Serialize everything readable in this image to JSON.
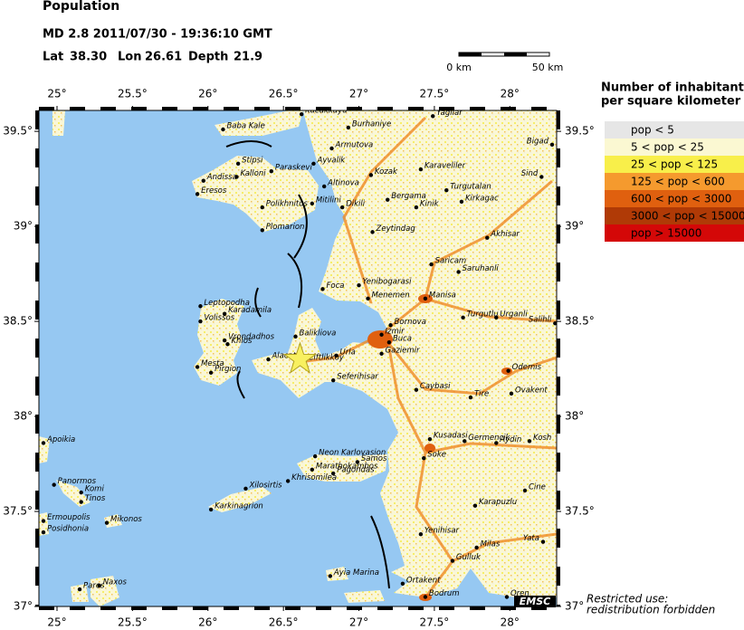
{
  "header": {
    "title": "Population",
    "event": "MD 2.8  2011/07/30 - 19:36:10 GMT",
    "lat_label": "Lat",
    "lat": {
      "value": 38.3,
      "label": "38.30"
    },
    "lon_label": "Lon",
    "lon": {
      "value": 26.61,
      "label": "26.61"
    },
    "depth_label": "Depth",
    "depth": {
      "value": 21.9,
      "label": "21.9"
    }
  },
  "scale": {
    "start": "0 km",
    "end": "50 km"
  },
  "map": {
    "xlim": [
      24.88,
      28.31
    ],
    "ylim": [
      37.0,
      39.61
    ],
    "xticks": [
      {
        "value": 25,
        "label": "25°"
      },
      {
        "value": 25.5,
        "label": "25.5°"
      },
      {
        "value": 26,
        "label": "26°"
      },
      {
        "value": 26.5,
        "label": "26.5°"
      },
      {
        "value": 27,
        "label": "27°"
      },
      {
        "value": 27.5,
        "label": "27.5°"
      },
      {
        "value": 28,
        "label": "28°"
      }
    ],
    "yticks": [
      {
        "value": 37,
        "label": "37°"
      },
      {
        "value": 37.5,
        "label": "37.5°"
      },
      {
        "value": 38,
        "label": "38°"
      },
      {
        "value": 38.5,
        "label": "38.5°"
      },
      {
        "value": 39,
        "label": "39°"
      },
      {
        "value": 39.5,
        "label": "39.5°"
      }
    ],
    "towns": [
      {
        "name": "Baba Kale",
        "lon": 26.1,
        "lat": 39.51
      },
      {
        "name": "Kucukkuyu",
        "lon": 26.62,
        "lat": 39.59
      },
      {
        "name": "Burhaniye",
        "lon": 26.93,
        "lat": 39.52
      },
      {
        "name": "Yagliar",
        "lon": 27.49,
        "lat": 39.58
      },
      {
        "name": "Bigad",
        "lon": 28.28,
        "lat": 39.43
      },
      {
        "name": "Armutova",
        "lon": 26.82,
        "lat": 39.41
      },
      {
        "name": "Stipsi",
        "lon": 26.2,
        "lat": 39.33
      },
      {
        "name": "Ayvalik",
        "lon": 26.7,
        "lat": 39.33
      },
      {
        "name": "Paraskevi",
        "lon": 26.42,
        "lat": 39.29
      },
      {
        "name": "Kozak",
        "lon": 27.08,
        "lat": 39.27
      },
      {
        "name": "Karaveliler",
        "lon": 27.41,
        "lat": 39.3
      },
      {
        "name": "Sind",
        "lon": 28.21,
        "lat": 39.26
      },
      {
        "name": "Andissa",
        "lon": 25.97,
        "lat": 39.24
      },
      {
        "name": "Kalloni",
        "lon": 26.19,
        "lat": 39.26
      },
      {
        "name": "Altinova",
        "lon": 26.77,
        "lat": 39.21
      },
      {
        "name": "Turgutalan",
        "lon": 27.58,
        "lat": 39.19
      },
      {
        "name": "Eresos",
        "lon": 25.93,
        "lat": 39.17
      },
      {
        "name": "Mitilini",
        "lon": 26.69,
        "lat": 39.12
      },
      {
        "name": "Bergama",
        "lon": 27.19,
        "lat": 39.14
      },
      {
        "name": "Kirkagac",
        "lon": 27.68,
        "lat": 39.13
      },
      {
        "name": "Polikhnitos",
        "lon": 26.36,
        "lat": 39.1
      },
      {
        "name": "Dikili",
        "lon": 26.89,
        "lat": 39.1
      },
      {
        "name": "Kinik",
        "lon": 27.38,
        "lat": 39.1
      },
      {
        "name": "Plomarion",
        "lon": 26.36,
        "lat": 38.98
      },
      {
        "name": "Zeytindag",
        "lon": 27.09,
        "lat": 38.97
      },
      {
        "name": "Akhisar",
        "lon": 27.85,
        "lat": 38.94
      },
      {
        "name": "Saricam",
        "lon": 27.48,
        "lat": 38.8
      },
      {
        "name": "Saruhanli",
        "lon": 27.66,
        "lat": 38.76
      },
      {
        "name": "Foca",
        "lon": 26.76,
        "lat": 38.67
      },
      {
        "name": "Yenibogarasi",
        "lon": 27.0,
        "lat": 38.69
      },
      {
        "name": "Menemen",
        "lon": 27.06,
        "lat": 38.62
      },
      {
        "name": "Manisa",
        "lon": 27.44,
        "lat": 38.62
      },
      {
        "name": "Leptopodha",
        "lon": 25.95,
        "lat": 38.58
      },
      {
        "name": "Karadamila",
        "lon": 26.11,
        "lat": 38.54
      },
      {
        "name": "Turgutlu",
        "lon": 27.69,
        "lat": 38.52
      },
      {
        "name": "Urganli",
        "lon": 27.91,
        "lat": 38.52
      },
      {
        "name": "Salihli",
        "lon": 28.3,
        "lat": 38.49
      },
      {
        "name": "Volissos",
        "lon": 25.95,
        "lat": 38.5
      },
      {
        "name": "Bornova",
        "lon": 27.21,
        "lat": 38.48
      },
      {
        "name": "Izmir",
        "lon": 27.15,
        "lat": 38.43
      },
      {
        "name": "Vrondadhos",
        "lon": 26.11,
        "lat": 38.4
      },
      {
        "name": "Balikliova",
        "lon": 26.58,
        "lat": 38.42
      },
      {
        "name": "Khios",
        "lon": 26.13,
        "lat": 38.38
      },
      {
        "name": "Buca",
        "lon": 27.2,
        "lat": 38.39
      },
      {
        "name": "Urla",
        "lon": 26.85,
        "lat": 38.32
      },
      {
        "name": "Gaziemir",
        "lon": 27.15,
        "lat": 38.33
      },
      {
        "name": "Ciftlikkoy",
        "lon": 26.64,
        "lat": 38.29
      },
      {
        "name": "Alacati",
        "lon": 26.4,
        "lat": 38.3
      },
      {
        "name": "Mesta",
        "lon": 25.93,
        "lat": 38.26
      },
      {
        "name": "Pirgion",
        "lon": 26.02,
        "lat": 38.23
      },
      {
        "name": "Odemis",
        "lon": 27.99,
        "lat": 38.24
      },
      {
        "name": "Seferihisar",
        "lon": 26.83,
        "lat": 38.19
      },
      {
        "name": "Caybasi",
        "lon": 27.38,
        "lat": 38.14
      },
      {
        "name": "Tire",
        "lon": 27.74,
        "lat": 38.1
      },
      {
        "name": "Ovakent",
        "lon": 28.01,
        "lat": 38.12
      },
      {
        "name": "Apoikia",
        "lon": 24.91,
        "lat": 37.86
      },
      {
        "name": "Kusadasi",
        "lon": 27.47,
        "lat": 37.88
      },
      {
        "name": "Germencik",
        "lon": 27.7,
        "lat": 37.87
      },
      {
        "name": "Aydin",
        "lon": 27.91,
        "lat": 37.86
      },
      {
        "name": "Kosh",
        "lon": 28.13,
        "lat": 37.87
      },
      {
        "name": "Neon Karlovasion",
        "lon": 26.71,
        "lat": 37.79
      },
      {
        "name": "Samos",
        "lon": 26.99,
        "lat": 37.76
      },
      {
        "name": "Marathokambos",
        "lon": 26.69,
        "lat": 37.72
      },
      {
        "name": "Soke",
        "lon": 27.43,
        "lat": 37.78
      },
      {
        "name": "Pagondas",
        "lon": 26.83,
        "lat": 37.7
      },
      {
        "name": "Panormos",
        "lon": 24.98,
        "lat": 37.64
      },
      {
        "name": "Khrisomilea",
        "lon": 26.53,
        "lat": 37.66
      },
      {
        "name": "Komi",
        "lon": 25.16,
        "lat": 37.6
      },
      {
        "name": "Xilosirtis",
        "lon": 26.25,
        "lat": 37.62
      },
      {
        "name": "Cine",
        "lon": 28.1,
        "lat": 37.61
      },
      {
        "name": "Tinos",
        "lon": 25.16,
        "lat": 37.55
      },
      {
        "name": "Karkinagrion",
        "lon": 26.02,
        "lat": 37.51
      },
      {
        "name": "Karapuzlu",
        "lon": 27.77,
        "lat": 37.53
      },
      {
        "name": "Ermoupolis",
        "lon": 24.91,
        "lat": 37.45
      },
      {
        "name": "Mikonos",
        "lon": 25.33,
        "lat": 37.44
      },
      {
        "name": "Posidhonia",
        "lon": 24.91,
        "lat": 37.39
      },
      {
        "name": "Yenihisar",
        "lon": 27.41,
        "lat": 37.38
      },
      {
        "name": "Yata",
        "lon": 28.22,
        "lat": 37.34
      },
      {
        "name": "Milas",
        "lon": 27.78,
        "lat": 37.31
      },
      {
        "name": "Gulluk",
        "lon": 27.62,
        "lat": 37.24
      },
      {
        "name": "Ayia Marina",
        "lon": 26.81,
        "lat": 37.16
      },
      {
        "name": "Naxos",
        "lon": 25.28,
        "lat": 37.11
      },
      {
        "name": "Paros",
        "lon": 25.15,
        "lat": 37.09
      },
      {
        "name": "Ortakent",
        "lon": 27.29,
        "lat": 37.12
      },
      {
        "name": "Bodrum",
        "lon": 27.44,
        "lat": 37.05
      },
      {
        "name": "Oren",
        "lon": 27.98,
        "lat": 37.05
      }
    ],
    "logo": "EMSC"
  },
  "legend": {
    "title_1": "Number of inhabitants",
    "title_2": "per square kilometer",
    "items": [
      {
        "label": "pop < 5",
        "color": "#e6e6e6"
      },
      {
        "label": "5 < pop < 25",
        "color": "#fbf8d2"
      },
      {
        "label": "25 < pop < 125",
        "color": "#f8ef4a"
      },
      {
        "label": "125 < pop < 600",
        "color": "#f59a2e"
      },
      {
        "label": "600 < pop < 3000",
        "color": "#e0600f"
      },
      {
        "label": "3000 < pop < 15000",
        "color": "#b03a06"
      },
      {
        "label": "pop > 15000",
        "color": "#d40808"
      }
    ]
  },
  "footer": {
    "line_1": "Restricted use:",
    "line_2": "redistribution forbidden"
  }
}
